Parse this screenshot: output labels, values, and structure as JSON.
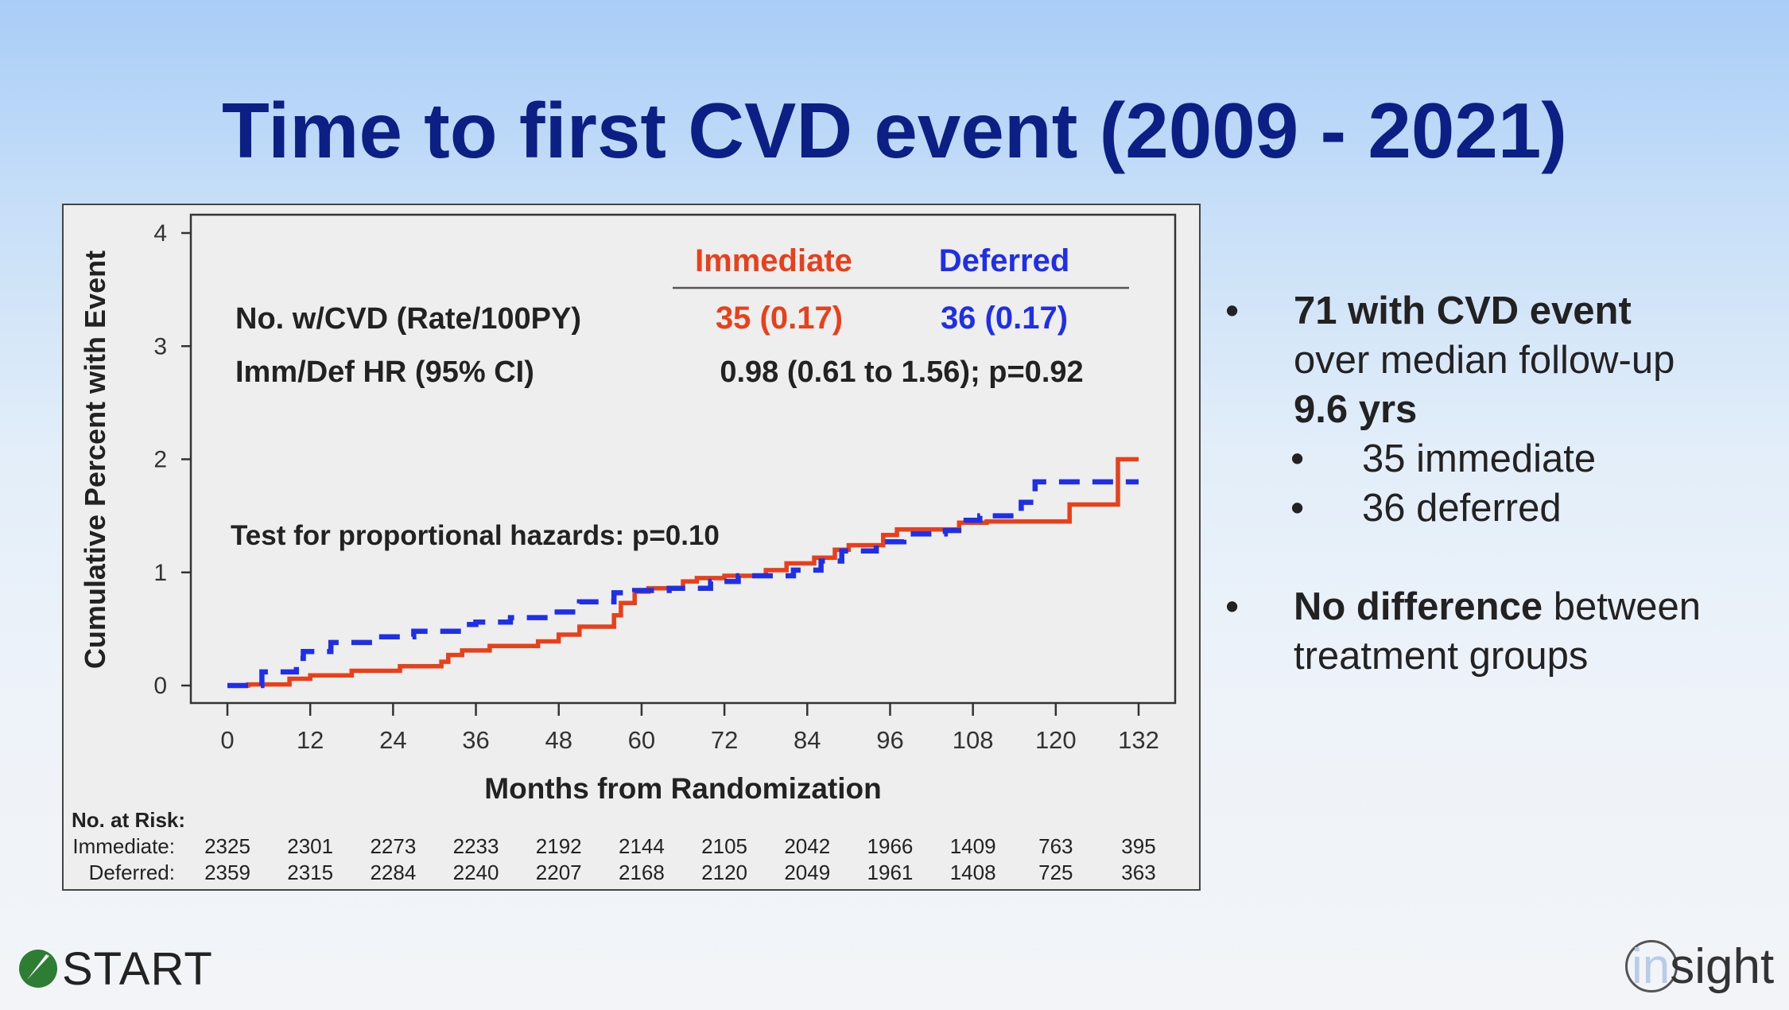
{
  "slide": {
    "title": "Time to first CVD event (2009 - 2021)"
  },
  "chart_data": {
    "type": "line",
    "title": "",
    "xlabel": "Months from Randomization",
    "ylabel": "Cumulative Percent with Event",
    "xlim": [
      0,
      132
    ],
    "ylim": [
      0,
      4
    ],
    "x_ticks": [
      0,
      12,
      24,
      36,
      48,
      60,
      72,
      84,
      96,
      108,
      120,
      132
    ],
    "y_ticks": [
      0,
      1,
      2,
      3,
      4
    ],
    "grid": false,
    "legend": {
      "header_immediate": "Immediate",
      "header_deferred": "Deferred",
      "row1_label": "No. w/CVD (Rate/100PY)",
      "row1_immediate": "35 (0.17)",
      "row1_deferred": "36 (0.17)",
      "row2_label": "Imm/Def HR (95% CI)",
      "row2_value": "0.98 (0.61 to 1.56); p=0.92"
    },
    "annotation": "Test for proportional hazards: p=0.10",
    "series": [
      {
        "name": "Immediate",
        "color": "#e8401a",
        "style": "solid",
        "points": [
          [
            0,
            0
          ],
          [
            3,
            0
          ],
          [
            3,
            0.01
          ],
          [
            9,
            0.01
          ],
          [
            9,
            0.06
          ],
          [
            12,
            0.06
          ],
          [
            12,
            0.09
          ],
          [
            18,
            0.09
          ],
          [
            18,
            0.13
          ],
          [
            25,
            0.13
          ],
          [
            25,
            0.17
          ],
          [
            31,
            0.17
          ],
          [
            31,
            0.21
          ],
          [
            32,
            0.21
          ],
          [
            32,
            0.27
          ],
          [
            34,
            0.27
          ],
          [
            34,
            0.31
          ],
          [
            38,
            0.31
          ],
          [
            38,
            0.35
          ],
          [
            45,
            0.35
          ],
          [
            45,
            0.39
          ],
          [
            48,
            0.39
          ],
          [
            48,
            0.45
          ],
          [
            51,
            0.45
          ],
          [
            51,
            0.52
          ],
          [
            56,
            0.52
          ],
          [
            56,
            0.62
          ],
          [
            57,
            0.62
          ],
          [
            57,
            0.73
          ],
          [
            59,
            0.73
          ],
          [
            59,
            0.83
          ],
          [
            61,
            0.83
          ],
          [
            61,
            0.86
          ],
          [
            66,
            0.86
          ],
          [
            66,
            0.92
          ],
          [
            68,
            0.92
          ],
          [
            68,
            0.95
          ],
          [
            72,
            0.95
          ],
          [
            72,
            0.97
          ],
          [
            78,
            0.97
          ],
          [
            78,
            1.02
          ],
          [
            81,
            1.02
          ],
          [
            81,
            1.08
          ],
          [
            85,
            1.08
          ],
          [
            85,
            1.13
          ],
          [
            88,
            1.13
          ],
          [
            88,
            1.2
          ],
          [
            90,
            1.2
          ],
          [
            90,
            1.24
          ],
          [
            95,
            1.24
          ],
          [
            95,
            1.33
          ],
          [
            97,
            1.33
          ],
          [
            97,
            1.38
          ],
          [
            106,
            1.38
          ],
          [
            106,
            1.44
          ],
          [
            110,
            1.44
          ],
          [
            110,
            1.45
          ],
          [
            122,
            1.45
          ],
          [
            122,
            1.6
          ],
          [
            129,
            1.6
          ],
          [
            129,
            2.0
          ],
          [
            132,
            2.0
          ]
        ]
      },
      {
        "name": "Deferred",
        "color": "#1f2fe8",
        "style": "dashed",
        "points": [
          [
            0,
            0
          ],
          [
            5,
            0
          ],
          [
            5,
            0.12
          ],
          [
            10,
            0.12
          ],
          [
            10,
            0.24
          ],
          [
            11,
            0.24
          ],
          [
            11,
            0.3
          ],
          [
            15,
            0.3
          ],
          [
            15,
            0.38
          ],
          [
            21,
            0.38
          ],
          [
            21,
            0.43
          ],
          [
            27,
            0.43
          ],
          [
            27,
            0.48
          ],
          [
            34,
            0.48
          ],
          [
            34,
            0.54
          ],
          [
            36,
            0.54
          ],
          [
            36,
            0.56
          ],
          [
            41,
            0.56
          ],
          [
            41,
            0.6
          ],
          [
            46,
            0.6
          ],
          [
            46,
            0.65
          ],
          [
            51,
            0.65
          ],
          [
            51,
            0.74
          ],
          [
            56,
            0.74
          ],
          [
            56,
            0.82
          ],
          [
            59,
            0.82
          ],
          [
            59,
            0.84
          ],
          [
            64,
            0.84
          ],
          [
            64,
            0.86
          ],
          [
            70,
            0.86
          ],
          [
            70,
            0.92
          ],
          [
            74,
            0.92
          ],
          [
            74,
            0.97
          ],
          [
            82,
            0.97
          ],
          [
            82,
            1.02
          ],
          [
            86,
            1.02
          ],
          [
            86,
            1.1
          ],
          [
            89,
            1.1
          ],
          [
            89,
            1.19
          ],
          [
            94,
            1.19
          ],
          [
            94,
            1.27
          ],
          [
            98,
            1.27
          ],
          [
            98,
            1.34
          ],
          [
            104,
            1.34
          ],
          [
            104,
            1.37
          ],
          [
            107,
            1.37
          ],
          [
            107,
            1.46
          ],
          [
            109,
            1.46
          ],
          [
            109,
            1.5
          ],
          [
            115,
            1.5
          ],
          [
            115,
            1.62
          ],
          [
            117,
            1.62
          ],
          [
            117,
            1.8
          ],
          [
            130,
            1.8
          ],
          [
            130,
            1.8
          ],
          [
            132,
            1.8
          ]
        ]
      }
    ],
    "risk_table": {
      "header": "No. at Risk:",
      "rows": [
        {
          "label": "Immediate:",
          "values": [
            "2325",
            "2301",
            "2273",
            "2233",
            "2192",
            "2144",
            "2105",
            "2042",
            "1966",
            "1409",
            "763",
            "395"
          ]
        },
        {
          "label": "Deferred:",
          "values": [
            "2359",
            "2315",
            "2284",
            "2240",
            "2207",
            "2168",
            "2120",
            "2049",
            "1961",
            "1408",
            "725",
            "363"
          ]
        }
      ]
    }
  },
  "bullets": {
    "b1_bold": "71 with CVD event",
    "b1_line2": "over median follow-up",
    "b1_line3": "9.6 yrs",
    "b1_sub1": "35 immediate",
    "b1_sub2": "36 deferred",
    "b2_bold": "No difference",
    "b2_rest": " between",
    "b2_line2": "treatment groups",
    "bullet_char": "•"
  },
  "logos": {
    "start": "START",
    "insight_pre": "in",
    "insight_post": "sight",
    "start_color": "#2d7d34"
  }
}
